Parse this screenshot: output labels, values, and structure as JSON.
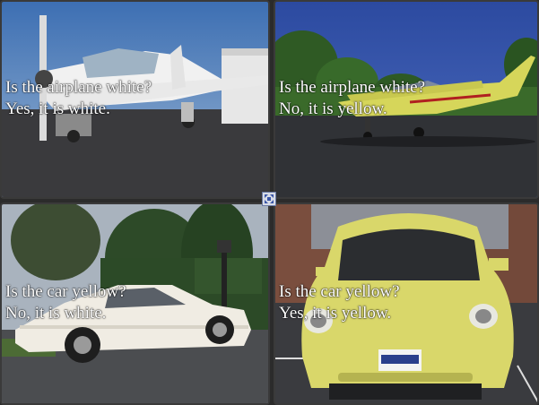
{
  "tiles": [
    {
      "question": "Is the airplane white?",
      "answer": "Yes, it is white."
    },
    {
      "question": "Is the airplane white?",
      "answer": "No, it is yellow."
    },
    {
      "question": "Is the car yellow?",
      "answer": "No, it is white."
    },
    {
      "question": "Is the car yellow?",
      "answer": "Yes, it is yellow."
    }
  ],
  "icons": {
    "expand": "expand-icon"
  },
  "colors": {
    "background": "#2b2b2b",
    "caption_text": "#ffffff",
    "expand_border": "#6c7ca6"
  }
}
